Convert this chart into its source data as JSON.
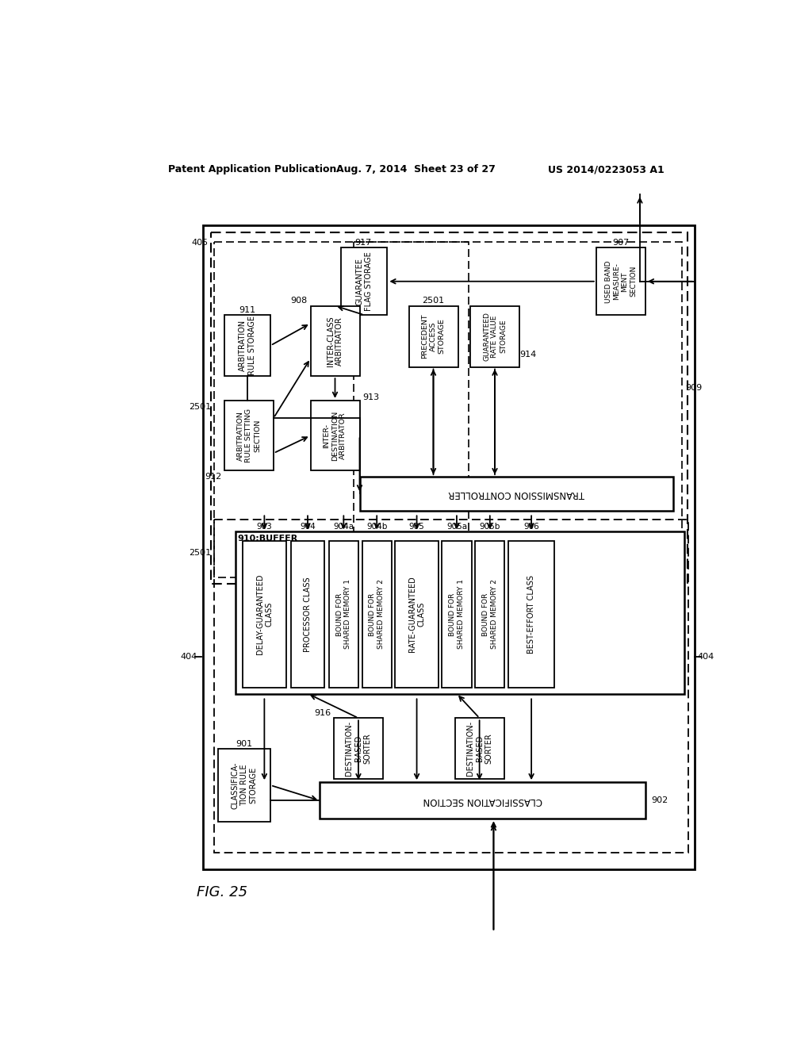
{
  "title_left": "Patent Application Publication",
  "title_mid": "Aug. 7, 2014  Sheet 23 of 27",
  "title_right": "US 2014/0223053 A1",
  "fig_label": "FIG. 25",
  "background": "#ffffff"
}
